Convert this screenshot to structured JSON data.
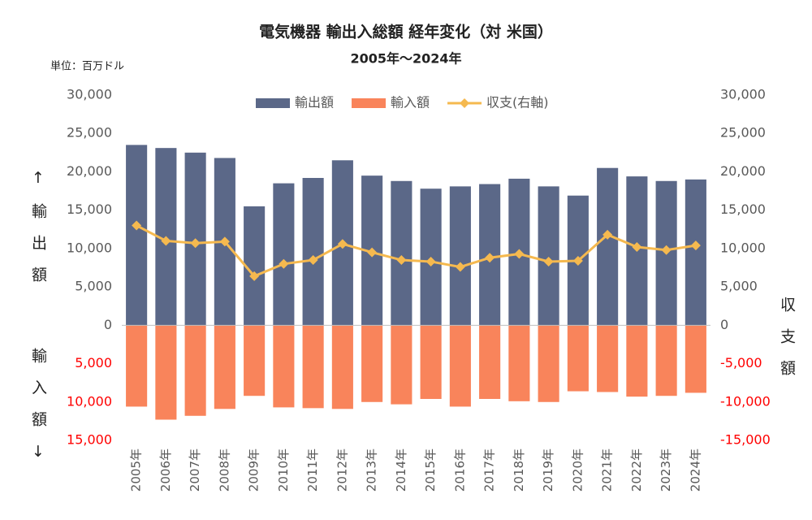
{
  "chart_data": {
    "type": "bar",
    "title": "電気機器 輸出入総額 経年変化（対 米国）",
    "subtitle": "2005年～2024年",
    "unit_label": "単位：百万ドル",
    "y_axis_label_top": "↑輸出額",
    "y_axis_label_bottom": "輸入額↓",
    "y2_axis_label": "収支額",
    "categories": [
      "2005年",
      "2006年",
      "2007年",
      "2008年",
      "2009年",
      "2010年",
      "2011年",
      "2012年",
      "2013年",
      "2014年",
      "2015年",
      "2016年",
      "2017年",
      "2018年",
      "2019年",
      "2020年",
      "2021年",
      "2022年",
      "2023年",
      "2024年"
    ],
    "series": [
      {
        "name": "輸出額",
        "type": "bar",
        "color": "#5b6888",
        "values": [
          23500,
          23100,
          22500,
          21800,
          15500,
          18500,
          19200,
          21500,
          19500,
          18800,
          17800,
          18100,
          18400,
          19100,
          18100,
          16900,
          20500,
          19400,
          18800,
          19000
        ]
      },
      {
        "name": "輸入額",
        "type": "bar",
        "color": "#f9845b",
        "values": [
          -10600,
          -12300,
          -11800,
          -10900,
          -9200,
          -10700,
          -10800,
          -10900,
          -10000,
          -10300,
          -9600,
          -10600,
          -9600,
          -9900,
          -10000,
          -8600,
          -8700,
          -9300,
          -9200,
          -8800
        ]
      },
      {
        "name": "収支(右軸)",
        "type": "line",
        "axis": "y2",
        "color": "#f5b94f",
        "values": [
          13000,
          11000,
          10700,
          10900,
          6400,
          8000,
          8500,
          10600,
          9500,
          8500,
          8300,
          7600,
          8800,
          9300,
          8300,
          8400,
          11800,
          10200,
          9800,
          10400
        ]
      }
    ],
    "ylim": [
      -15000,
      30000
    ],
    "yticks": [
      {
        "value": 30000,
        "label": "30,000"
      },
      {
        "value": 25000,
        "label": "25,000"
      },
      {
        "value": 20000,
        "label": "20,000"
      },
      {
        "value": 15000,
        "label": "15,000"
      },
      {
        "value": 10000,
        "label": "10,000"
      },
      {
        "value": 5000,
        "label": "5,000"
      },
      0,
      {
        "value": -5000,
        "label": "5,000"
      },
      {
        "value": -10000,
        "label": "10,000"
      },
      {
        "value": -15000,
        "label": "15,000"
      }
    ],
    "y2lim": [
      -15000,
      30000
    ],
    "y2ticks": [
      {
        "value": 30000,
        "label": "30,000"
      },
      {
        "value": 25000,
        "label": "25,000"
      },
      {
        "value": 20000,
        "label": "20,000"
      },
      {
        "value": 15000,
        "label": "15,000"
      },
      {
        "value": 10000,
        "label": "10,000"
      },
      {
        "value": 5000,
        "label": "5,000"
      },
      0,
      {
        "value": -5000,
        "label": "-5,000"
      },
      {
        "value": -10000,
        "label": "-10,000"
      },
      {
        "value": -15000,
        "label": "-15,000"
      }
    ],
    "negative_tick_color": "#ff0000",
    "grid": false,
    "legend": "top"
  }
}
